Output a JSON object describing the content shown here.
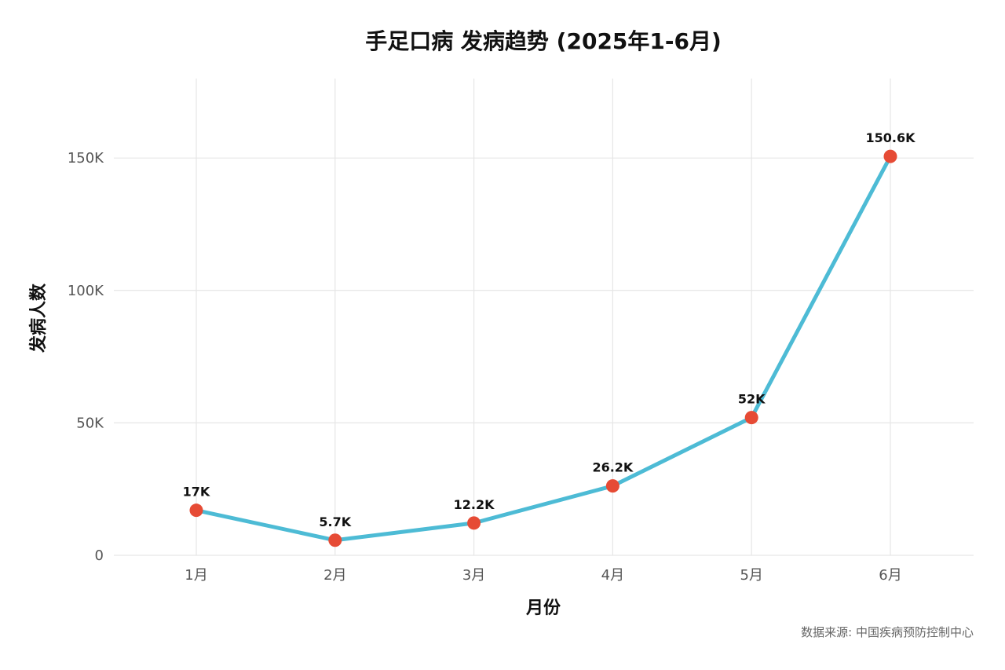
{
  "chart_data": {
    "type": "line",
    "title": "手足口病 发病趋势 (2025年1-6月)",
    "xlabel": "月份",
    "ylabel": "发病人数",
    "categories": [
      "1月",
      "2月",
      "3月",
      "4月",
      "5月",
      "6月"
    ],
    "series": [
      {
        "values": [
          17000,
          5700,
          12200,
          26200,
          52000,
          150600
        ],
        "labels": [
          "17K",
          "5.7K",
          "12.2K",
          "26.2K",
          "52K",
          "150.6K"
        ]
      }
    ],
    "ylim": [
      0,
      180000
    ],
    "yticks": [
      0,
      50000,
      100000,
      150000
    ],
    "ytick_labels": [
      "0",
      "50K",
      "100K",
      "150K"
    ],
    "grid": true,
    "legend": "none",
    "source": "数据来源: 中国疾病预防控制中心",
    "colors": {
      "line": "#4DBBD5",
      "point": "#E64B35"
    }
  }
}
